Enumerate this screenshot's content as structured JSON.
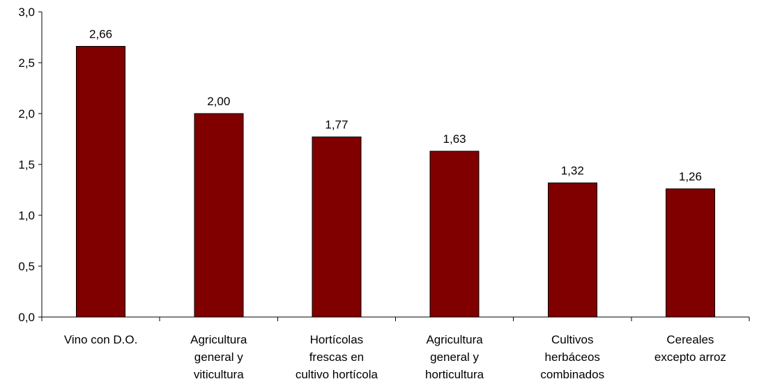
{
  "chart_data": {
    "type": "bar",
    "title": "",
    "xlabel": "",
    "ylabel": "",
    "categories": [
      [
        "Vino con D.O."
      ],
      [
        "Agricultura",
        "general y",
        "viticultura"
      ],
      [
        "Hortícolas",
        "frescas en",
        "cultivo hortícola"
      ],
      [
        "Agricultura",
        "general y",
        "horticultura"
      ],
      [
        "Cultivos",
        "herbáceos",
        "combinados"
      ],
      [
        "Cereales",
        "excepto arroz"
      ]
    ],
    "values": [
      2.66,
      2.0,
      1.77,
      1.63,
      1.32,
      1.26
    ],
    "value_labels": [
      "2,66",
      "2,00",
      "1,77",
      "1,63",
      "1,32",
      "1,26"
    ],
    "yticks": [
      0.0,
      0.5,
      1.0,
      1.5,
      2.0,
      2.5,
      3.0
    ],
    "ytick_labels": [
      "0,0",
      "0,5",
      "1,0",
      "1,5",
      "2,0",
      "2,5",
      "3,0"
    ],
    "ylim": [
      0,
      3
    ],
    "grid": false,
    "legend": "none",
    "bar_color": "#800000"
  }
}
